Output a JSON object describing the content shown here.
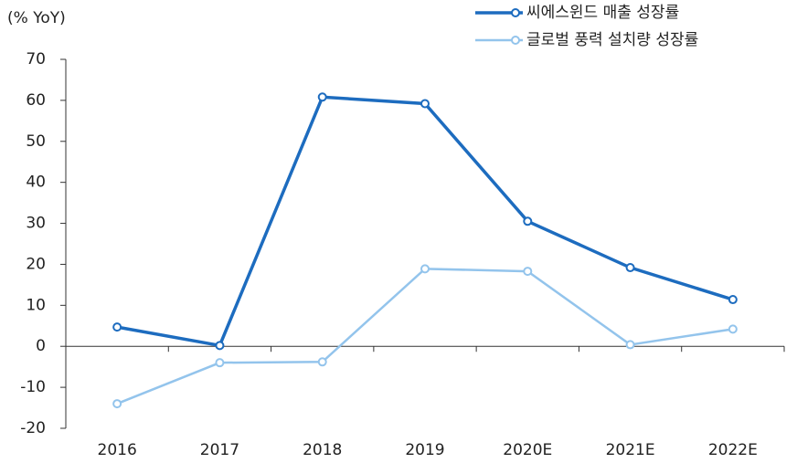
{
  "chart_data": {
    "type": "line",
    "y_axis_label": "(% YoY)",
    "categories": [
      "2016",
      "2017",
      "2018",
      "2019",
      "2020E",
      "2021E",
      "2022E"
    ],
    "series": [
      {
        "name": "씨에스윈드 매출 성장률",
        "color": "#1d6cbf",
        "values": [
          4.7,
          0.2,
          60.8,
          59.2,
          30.5,
          19.2,
          11.4
        ]
      },
      {
        "name": "글로벌 풍력 설치량 성장률",
        "color": "#93c4ec",
        "values": [
          -14,
          -4,
          -3.8,
          18.9,
          18.3,
          0.4,
          4.2
        ]
      }
    ],
    "ylim": [
      -20,
      70
    ],
    "yticks": [
      -20,
      -10,
      0,
      10,
      20,
      30,
      40,
      50,
      60,
      70
    ],
    "legend": "top-right"
  }
}
